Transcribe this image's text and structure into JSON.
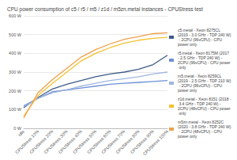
{
  "chart_data": {
    "type": "line",
    "title": "CPU power consumption of c5 / r5 / m5 / z1d / m5zn.metal instances - CPUStress test",
    "categories": [
      "idle",
      "CPUStress 10%",
      "CPUStress 20%",
      "CPUStress 30%",
      "CPUStress 40%",
      "CPUStress 50%",
      "CPUStress 60%",
      "CPUStress 70%",
      "CPUStress 80%",
      "CPUStress 90%",
      "CPUStress 100%"
    ],
    "series": [
      {
        "name": "c5.metal - Xeon 8275CL (2019 - 3.0 GHz - TDP 240 W) - 2CPU (96vCPU) - CPU power only",
        "color": "#3d5a8a",
        "values": [
          110,
          165,
          210,
          235,
          255,
          275,
          290,
          300,
          315,
          340,
          390
        ]
      },
      {
        "name": "r5.metal - Xeon 8175M (2017 - 2.5 GHz - TDP 240 W) - 2CPU (96vCPU) - CPU power only",
        "color": "#6f8fd6",
        "values": [
          120,
          160,
          195,
          205,
          215,
          225,
          235,
          240,
          245,
          250,
          255
        ]
      },
      {
        "name": "m5.metal - Xeon 8259CL (2019 - 2.5 GHz - TDP 210 W) - 2CPU (96vCPU) - CPU power only",
        "color": "#9fb6e0",
        "values": [
          115,
          160,
          190,
          205,
          225,
          240,
          255,
          265,
          275,
          290,
          300
        ]
      },
      {
        "name": "z1d.metal - Xeon 8151 (2018 - 3.4 GHz - TDP 240 W) - 2CPU (48vCPU) - CPU power only",
        "color": "#f2c230",
        "values": [
          65,
          175,
          240,
          300,
          360,
          400,
          430,
          455,
          470,
          480,
          485
        ]
      },
      {
        "name": "m5zn.metal - Xeon 8252C (2020 - 3.8 GHz - TDP 240 W) - 2CPU (48vCPU) - CPU power only",
        "color": "#f0a04b",
        "values": [
          55,
          190,
          260,
          320,
          380,
          420,
          450,
          475,
          490,
          505,
          510
        ]
      }
    ],
    "ylim": [
      0,
      600
    ],
    "yticks": [
      {
        "value": 0,
        "label": "0 W"
      },
      {
        "value": 100,
        "label": "100 W"
      },
      {
        "value": 200,
        "label": "200 W"
      },
      {
        "value": 300,
        "label": "300 W"
      },
      {
        "value": 400,
        "label": "400 W"
      },
      {
        "value": 500,
        "label": "500 W"
      },
      {
        "value": 600,
        "label": "600 W"
      }
    ],
    "grid": true,
    "legend": "right"
  }
}
